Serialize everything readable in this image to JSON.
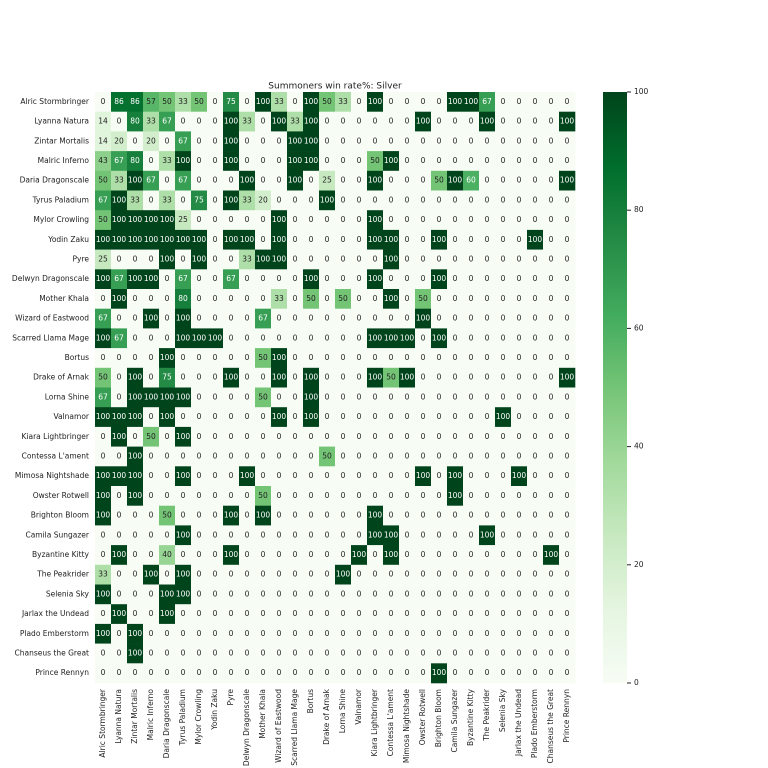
{
  "chart_data": {
    "type": "heatmap",
    "title": "Summoners win rate%: Silver",
    "x_categories": [
      "Alric Stormbringer",
      "Lyanna Natura",
      "Zintar Mortalis",
      "Malric Inferno",
      "Daria Dragonscale",
      "Tyrus Paladium",
      "Mylor Crowling",
      "Yodin Zaku",
      "Pyre",
      "Delwyn Dragonscale",
      "Mother Khala",
      "Wizard of Eastwood",
      "Scarred Llama Mage",
      "Bortus",
      "Drake of Arnak",
      "Lorna Shine",
      "Valnamor",
      "Kiara Lightbringer",
      "Contessa L'ament",
      "Mimosa Nightshade",
      "Owster Rotwell",
      "Brighton Bloom",
      "Camila Sungazer",
      "Byzantine Kitty",
      "The Peakrider",
      "Selenia Sky",
      "Jarlax the Undead",
      "Plado Emberstorm",
      "Chanseus the Great",
      "Prince Rennyn"
    ],
    "y_categories": [
      "Alric Stormbringer",
      "Lyanna Natura",
      "Zintar Mortalis",
      "Malric Inferno",
      "Daria Dragonscale",
      "Tyrus Paladium",
      "Mylor Crowling",
      "Yodin Zaku",
      "Pyre",
      "Delwyn Dragonscale",
      "Mother Khala",
      "Wizard of Eastwood",
      "Scarred Llama Mage",
      "Bortus",
      "Drake of Arnak",
      "Lorna Shine",
      "Valnamor",
      "Kiara Lightbringer",
      "Contessa L'ament",
      "Mimosa Nightshade",
      "Owster Rotwell",
      "Brighton Bloom",
      "Camila Sungazer",
      "Byzantine Kitty",
      "The Peakrider",
      "Selenia Sky",
      "Jarlax the Undead",
      "Plado Emberstorm",
      "Chanseus the Great",
      "Prince Rennyn"
    ],
    "values": [
      [
        0,
        86,
        86,
        57,
        50,
        33,
        50,
        0,
        75,
        0,
        100,
        33,
        0,
        100,
        50,
        33,
        0,
        100,
        0,
        0,
        0,
        0,
        100,
        100,
        67,
        0,
        0,
        0,
        0,
        0
      ],
      [
        14,
        0,
        80,
        33,
        67,
        0,
        0,
        0,
        100,
        33,
        0,
        100,
        33,
        100,
        0,
        0,
        0,
        0,
        0,
        0,
        100,
        0,
        0,
        0,
        100,
        0,
        0,
        0,
        0,
        100
      ],
      [
        14,
        20,
        0,
        20,
        0,
        67,
        0,
        0,
        100,
        0,
        0,
        0,
        100,
        100,
        0,
        0,
        0,
        0,
        0,
        0,
        0,
        0,
        0,
        0,
        0,
        0,
        0,
        0,
        0,
        0
      ],
      [
        43,
        67,
        80,
        0,
        33,
        100,
        0,
        0,
        100,
        0,
        0,
        0,
        100,
        100,
        0,
        0,
        0,
        50,
        100,
        0,
        0,
        0,
        0,
        0,
        0,
        0,
        0,
        0,
        0,
        0
      ],
      [
        50,
        33,
        100,
        67,
        0,
        67,
        0,
        0,
        0,
        100,
        0,
        0,
        100,
        0,
        25,
        0,
        0,
        100,
        0,
        0,
        0,
        50,
        100,
        60,
        0,
        0,
        0,
        0,
        0,
        100
      ],
      [
        67,
        100,
        33,
        0,
        33,
        0,
        75,
        0,
        100,
        33,
        20,
        0,
        0,
        0,
        100,
        0,
        0,
        0,
        0,
        0,
        0,
        0,
        0,
        0,
        0,
        0,
        0,
        0,
        0,
        0
      ],
      [
        50,
        100,
        100,
        100,
        100,
        25,
        0,
        0,
        0,
        0,
        0,
        100,
        0,
        0,
        0,
        0,
        0,
        100,
        0,
        0,
        0,
        0,
        0,
        0,
        0,
        0,
        0,
        0,
        0,
        0
      ],
      [
        100,
        100,
        100,
        100,
        100,
        100,
        100,
        0,
        100,
        100,
        0,
        100,
        0,
        0,
        0,
        0,
        0,
        100,
        100,
        0,
        0,
        100,
        0,
        0,
        0,
        0,
        0,
        100,
        0,
        0
      ],
      [
        25,
        0,
        0,
        0,
        100,
        0,
        100,
        0,
        0,
        33,
        100,
        100,
        0,
        0,
        0,
        0,
        0,
        0,
        100,
        0,
        0,
        0,
        0,
        0,
        0,
        0,
        0,
        0,
        0,
        0
      ],
      [
        100,
        67,
        100,
        100,
        0,
        67,
        0,
        0,
        67,
        0,
        0,
        0,
        0,
        100,
        0,
        0,
        0,
        100,
        0,
        0,
        0,
        100,
        0,
        0,
        0,
        0,
        0,
        0,
        0,
        0
      ],
      [
        0,
        100,
        0,
        0,
        0,
        80,
        0,
        0,
        0,
        0,
        0,
        33,
        0,
        50,
        0,
        50,
        0,
        0,
        100,
        0,
        50,
        0,
        0,
        0,
        0,
        0,
        0,
        0,
        0,
        0
      ],
      [
        67,
        0,
        0,
        100,
        0,
        100,
        0,
        0,
        0,
        0,
        67,
        0,
        0,
        0,
        0,
        0,
        0,
        0,
        0,
        0,
        100,
        0,
        0,
        0,
        0,
        0,
        0,
        0,
        0,
        0
      ],
      [
        100,
        67,
        0,
        0,
        0,
        100,
        100,
        100,
        0,
        0,
        0,
        0,
        0,
        0,
        0,
        0,
        0,
        100,
        100,
        100,
        0,
        100,
        0,
        0,
        0,
        0,
        0,
        0,
        0,
        0
      ],
      [
        0,
        0,
        0,
        0,
        100,
        0,
        0,
        0,
        0,
        0,
        50,
        100,
        0,
        0,
        0,
        0,
        0,
        0,
        0,
        0,
        0,
        0,
        0,
        0,
        0,
        0,
        0,
        0,
        0,
        0
      ],
      [
        50,
        0,
        100,
        0,
        75,
        0,
        0,
        0,
        100,
        0,
        0,
        100,
        0,
        100,
        0,
        0,
        0,
        100,
        50,
        100,
        0,
        0,
        0,
        0,
        0,
        0,
        0,
        0,
        0,
        100
      ],
      [
        67,
        0,
        100,
        100,
        100,
        100,
        0,
        0,
        0,
        0,
        50,
        0,
        0,
        100,
        0,
        0,
        0,
        0,
        0,
        0,
        0,
        0,
        0,
        0,
        0,
        0,
        0,
        0,
        0,
        0
      ],
      [
        100,
        100,
        100,
        0,
        100,
        0,
        0,
        0,
        0,
        0,
        0,
        100,
        0,
        100,
        0,
        0,
        0,
        0,
        0,
        0,
        0,
        0,
        0,
        0,
        0,
        100,
        0,
        0,
        0,
        0
      ],
      [
        0,
        100,
        0,
        50,
        0,
        100,
        0,
        0,
        0,
        0,
        0,
        0,
        0,
        0,
        0,
        0,
        0,
        0,
        0,
        0,
        0,
        0,
        0,
        0,
        0,
        0,
        0,
        0,
        0,
        0
      ],
      [
        0,
        0,
        100,
        0,
        0,
        0,
        0,
        0,
        0,
        0,
        0,
        0,
        0,
        0,
        50,
        0,
        0,
        0,
        0,
        0,
        0,
        0,
        0,
        0,
        0,
        0,
        0,
        0,
        0,
        0
      ],
      [
        100,
        100,
        100,
        0,
        0,
        100,
        0,
        0,
        0,
        100,
        0,
        0,
        0,
        0,
        0,
        0,
        0,
        0,
        0,
        0,
        100,
        0,
        100,
        0,
        0,
        0,
        100,
        0,
        0,
        0
      ],
      [
        100,
        0,
        100,
        0,
        0,
        0,
        0,
        0,
        0,
        0,
        50,
        0,
        0,
        0,
        0,
        0,
        0,
        0,
        0,
        0,
        0,
        0,
        100,
        0,
        0,
        0,
        0,
        0,
        0,
        0
      ],
      [
        100,
        0,
        0,
        0,
        50,
        0,
        0,
        0,
        100,
        0,
        100,
        0,
        0,
        0,
        0,
        0,
        0,
        100,
        0,
        0,
        0,
        0,
        0,
        0,
        0,
        0,
        0,
        0,
        0,
        0
      ],
      [
        0,
        0,
        0,
        0,
        0,
        100,
        0,
        0,
        0,
        0,
        0,
        0,
        0,
        0,
        0,
        0,
        0,
        100,
        100,
        0,
        0,
        0,
        0,
        0,
        100,
        0,
        0,
        0,
        0,
        0
      ],
      [
        0,
        100,
        0,
        0,
        40,
        0,
        0,
        0,
        100,
        0,
        0,
        0,
        0,
        0,
        0,
        0,
        100,
        0,
        100,
        0,
        0,
        0,
        0,
        0,
        0,
        0,
        0,
        0,
        100,
        0
      ],
      [
        33,
        0,
        0,
        100,
        0,
        100,
        0,
        0,
        0,
        0,
        0,
        0,
        0,
        0,
        0,
        100,
        0,
        0,
        0,
        0,
        0,
        0,
        0,
        0,
        0,
        0,
        0,
        0,
        0,
        0
      ],
      [
        100,
        0,
        0,
        0,
        100,
        100,
        0,
        0,
        0,
        0,
        0,
        0,
        0,
        0,
        0,
        0,
        0,
        0,
        0,
        0,
        0,
        0,
        0,
        0,
        0,
        0,
        0,
        0,
        0,
        0
      ],
      [
        0,
        100,
        0,
        0,
        100,
        0,
        0,
        0,
        0,
        0,
        0,
        0,
        0,
        0,
        0,
        0,
        0,
        0,
        0,
        0,
        0,
        0,
        0,
        0,
        0,
        0,
        0,
        0,
        0,
        0
      ],
      [
        100,
        0,
        100,
        0,
        0,
        0,
        0,
        0,
        0,
        0,
        0,
        0,
        0,
        0,
        0,
        0,
        0,
        0,
        0,
        0,
        0,
        0,
        0,
        0,
        0,
        0,
        0,
        0,
        0,
        0
      ],
      [
        0,
        0,
        100,
        0,
        0,
        0,
        0,
        0,
        0,
        0,
        0,
        0,
        0,
        0,
        0,
        0,
        0,
        0,
        0,
        0,
        0,
        0,
        0,
        0,
        0,
        0,
        0,
        0,
        0,
        0
      ],
      [
        0,
        0,
        0,
        0,
        0,
        0,
        0,
        0,
        0,
        0,
        0,
        0,
        0,
        0,
        0,
        0,
        0,
        0,
        0,
        0,
        0,
        100,
        0,
        0,
        0,
        0,
        0,
        0,
        0,
        0
      ]
    ],
    "colormap": "Greens",
    "zlim": [
      0,
      100
    ],
    "colorbar_ticks": [
      0,
      20,
      40,
      60,
      80,
      100
    ]
  }
}
